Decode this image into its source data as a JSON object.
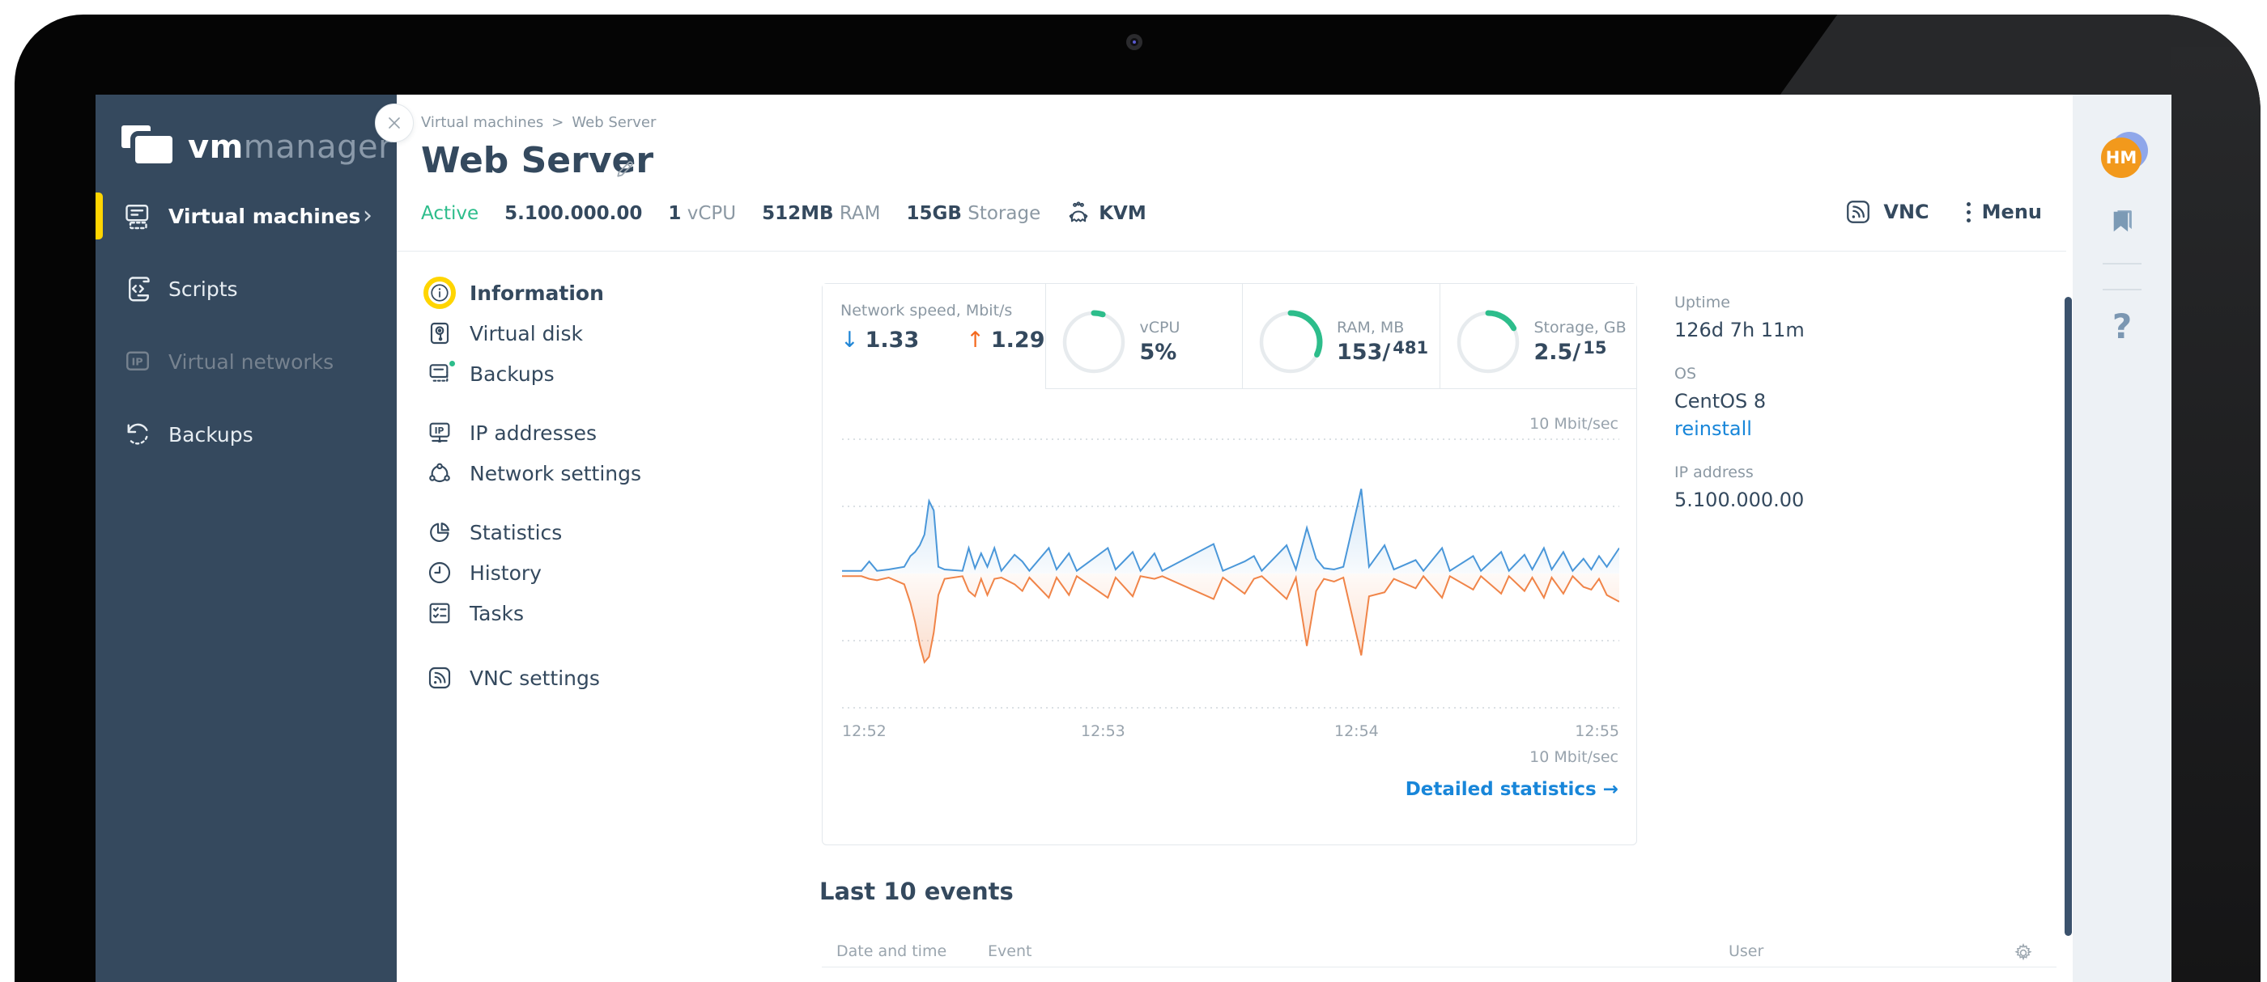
{
  "colors": {
    "sidebar_bg": "#35495e",
    "accent_yellow": "#ffd500",
    "status_green": "#2dbd8b",
    "link_blue": "#1886d9",
    "text_dark": "#34495e",
    "text_gray": "#8b98a3",
    "chart_download_blue": "#4a97d9",
    "chart_upload_orange": "#f08448",
    "avatar_orange": "#f2991c",
    "utility_bg": "#edf1f5"
  },
  "sidebar": {
    "logo_bold": "vm",
    "logo_light": "manager",
    "items": [
      {
        "label": "Virtual machines",
        "active": true
      },
      {
        "label": "Scripts"
      },
      {
        "label": "Virtual networks",
        "disabled": true
      },
      {
        "label": "Backups"
      }
    ]
  },
  "header": {
    "breadcrumb_parent": "Virtual machines",
    "breadcrumb_sep": ">",
    "breadcrumb_current": "Web Server",
    "title": "Web Server",
    "status": "Active",
    "ip": "5.100.000.00",
    "cpu": "1",
    "cpu_unit": "vCPU",
    "ram": "512MB",
    "ram_unit": "RAM",
    "storage": "15GB",
    "storage_unit": "Storage",
    "hypervisor": "KVM",
    "vnc": "VNC",
    "menu": "Menu"
  },
  "submenu": {
    "items": [
      "Information",
      "Virtual disk",
      "Backups",
      "IP addresses",
      "Network settings",
      "Statistics",
      "History",
      "Tasks",
      "VNC settings"
    ]
  },
  "cards": [
    {
      "label": "Network speed, Mbit/s",
      "down": "1.33",
      "up": "1.29",
      "selected": true
    },
    {
      "label": "vCPU",
      "value": "5%",
      "percent": 5
    },
    {
      "label": "RAM, MB",
      "value": "153/",
      "value_sub": "481",
      "percent": 32
    },
    {
      "label": "Storage, GB",
      "value": "2.5/",
      "value_sub": "15",
      "percent": 17
    }
  ],
  "chart_data": {
    "type": "area",
    "title": "Network speed, Mbit/s",
    "unit": "Mbit/s",
    "x_ticks": [
      "12:52",
      "12:53",
      "12:54",
      "12:55"
    ],
    "ylim": [
      -10,
      10
    ],
    "gridlines": [
      10,
      5,
      -5,
      -10
    ],
    "grid": "dotted",
    "scale_label_top": "10 Mbit/sec",
    "scale_label_bottom": "10 Mbit/sec",
    "link": "Detailed statistics →",
    "series_names": [
      "download",
      "upload"
    ],
    "points_format": "[x 0-1, download Mbit/s, upload Mbit/s (negative = below baseline)]",
    "points": [
      [
        0,
        0.2,
        -0.2
      ],
      [
        0.025,
        0.2,
        -0.2
      ],
      [
        0.035,
        0.9,
        -0.4
      ],
      [
        0.045,
        0.2,
        -0.5
      ],
      [
        0.06,
        0.3,
        -0.3
      ],
      [
        0.08,
        0.5,
        -0.8
      ],
      [
        0.088,
        1.3,
        -2.2
      ],
      [
        0.094,
        1.6,
        -3.6
      ],
      [
        0.1,
        2.1,
        -5.3
      ],
      [
        0.106,
        2.9,
        -6.6
      ],
      [
        0.112,
        5.4,
        -6.2
      ],
      [
        0.118,
        4.7,
        -4.4
      ],
      [
        0.124,
        0.5,
        -1.6
      ],
      [
        0.132,
        0.3,
        -0.4
      ],
      [
        0.155,
        0.2,
        -0.2
      ],
      [
        0.163,
        1.9,
        -1.3
      ],
      [
        0.171,
        0.4,
        -1.7
      ],
      [
        0.179,
        1.5,
        -0.4
      ],
      [
        0.187,
        0.5,
        -1.6
      ],
      [
        0.196,
        1.9,
        -0.4
      ],
      [
        0.205,
        0.2,
        -0.3
      ],
      [
        0.222,
        1.4,
        -0.8
      ],
      [
        0.232,
        0.9,
        -1.3
      ],
      [
        0.241,
        0.2,
        -0.3
      ],
      [
        0.266,
        1.9,
        -1.8
      ],
      [
        0.276,
        0.3,
        -0.3
      ],
      [
        0.292,
        1.5,
        -1.6
      ],
      [
        0.302,
        0.2,
        -0.2
      ],
      [
        0.342,
        1.9,
        -1.8
      ],
      [
        0.352,
        0.3,
        -0.3
      ],
      [
        0.374,
        1.6,
        -1.7
      ],
      [
        0.384,
        0.2,
        -0.2
      ],
      [
        0.402,
        1.5,
        -0.4
      ],
      [
        0.412,
        0.2,
        -0.2
      ],
      [
        0.478,
        2.2,
        -1.9
      ],
      [
        0.49,
        0.2,
        -0.3
      ],
      [
        0.518,
        0.9,
        -1.5
      ],
      [
        0.53,
        1.3,
        -0.4
      ],
      [
        0.54,
        0.2,
        -0.2
      ],
      [
        0.572,
        2.1,
        -1.9
      ],
      [
        0.584,
        0.3,
        -0.3
      ],
      [
        0.598,
        3.4,
        -5.4
      ],
      [
        0.61,
        1.1,
        -1.3
      ],
      [
        0.62,
        0.4,
        -0.4
      ],
      [
        0.633,
        0.3,
        -0.6
      ],
      [
        0.645,
        0.5,
        -0.3
      ],
      [
        0.668,
        6.3,
        -6.1
      ],
      [
        0.678,
        0.5,
        -1.7
      ],
      [
        0.698,
        2.1,
        -1.4
      ],
      [
        0.71,
        0.3,
        -0.4
      ],
      [
        0.738,
        1.0,
        -1.1
      ],
      [
        0.748,
        0.2,
        -0.2
      ],
      [
        0.772,
        1.9,
        -1.8
      ],
      [
        0.782,
        0.2,
        -0.2
      ],
      [
        0.812,
        1.3,
        -1.2
      ],
      [
        0.822,
        0.2,
        -0.2
      ],
      [
        0.848,
        1.6,
        -1.5
      ],
      [
        0.858,
        0.2,
        -0.2
      ],
      [
        0.878,
        1.4,
        -1.3
      ],
      [
        0.888,
        0.3,
        -0.3
      ],
      [
        0.903,
        1.9,
        -1.8
      ],
      [
        0.913,
        0.3,
        -0.3
      ],
      [
        0.928,
        1.6,
        -1.5
      ],
      [
        0.94,
        0.2,
        -0.2
      ],
      [
        0.954,
        1.1,
        -1.0
      ],
      [
        0.964,
        0.3,
        -1.2
      ],
      [
        0.974,
        1.3,
        -0.4
      ],
      [
        0.984,
        0.5,
        -1.6
      ],
      [
        1,
        1.9,
        -2.1
      ]
    ]
  },
  "info": {
    "uptime_label": "Uptime",
    "uptime": "126d 7h 11m",
    "os_label": "OS",
    "os": "CentOS 8",
    "reinstall": "reinstall",
    "ip_label": "IP address",
    "ip": "5.100.000.00"
  },
  "events": {
    "title": "Last 10 events",
    "col_datetime": "Date and time",
    "col_event": "Event",
    "col_user": "User"
  },
  "utility": {
    "avatar_initials": "HM",
    "help": "?"
  }
}
